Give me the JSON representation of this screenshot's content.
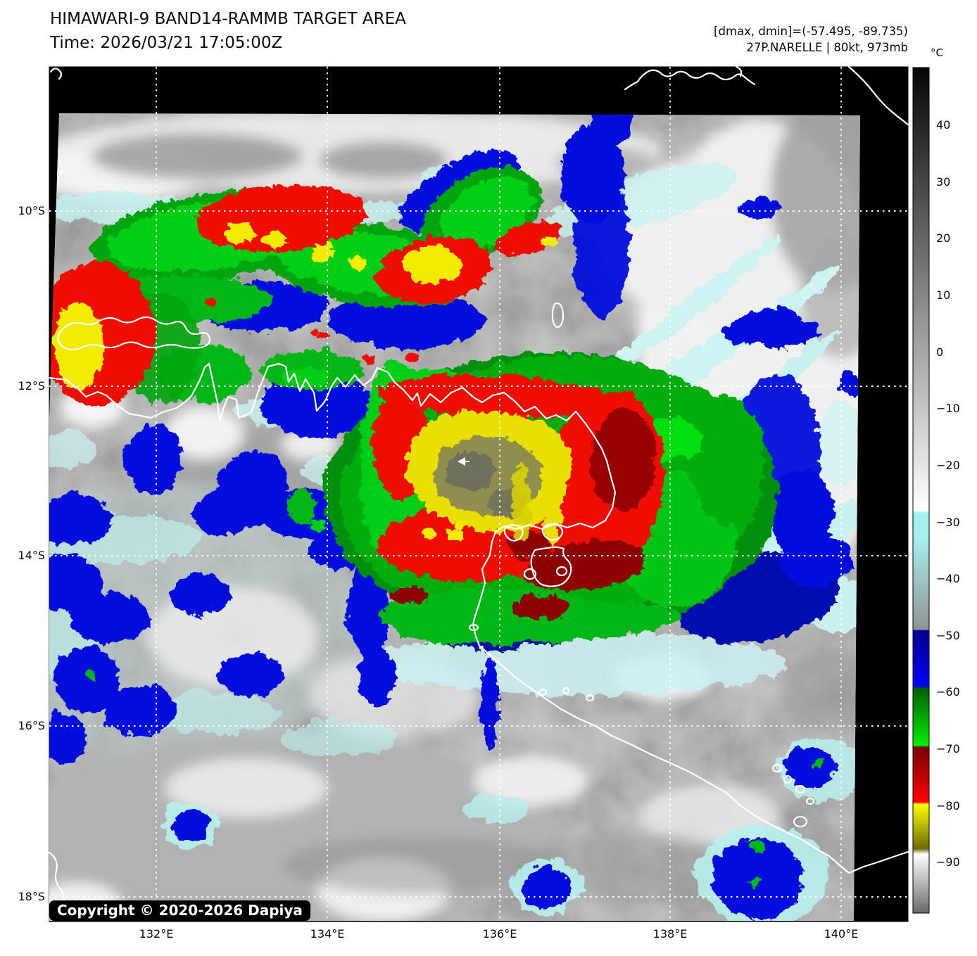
{
  "header": {
    "title": "HIMAWARI-9 BAND14-RAMMB TARGET AREA",
    "time_label": "Time: 2026/03/21 17:05:00Z",
    "dmax_dmin": "[dmax, dmin]=(-57.495, -89.735)",
    "storm_info": "27P.NARELLE | 80kt, 973mb"
  },
  "colorbar": {
    "unit": "°C",
    "ticks": [
      {
        "label": "40",
        "value": 40
      },
      {
        "label": "30",
        "value": 30
      },
      {
        "label": "20",
        "value": 20
      },
      {
        "label": "10",
        "value": 10
      },
      {
        "label": "0",
        "value": 0
      },
      {
        "label": "−10",
        "value": -10
      },
      {
        "label": "−20",
        "value": -20
      },
      {
        "label": "−30",
        "value": -30
      },
      {
        "label": "−40",
        "value": -40
      },
      {
        "label": "−50",
        "value": -50
      },
      {
        "label": "−60",
        "value": -60
      },
      {
        "label": "−70",
        "value": -70
      },
      {
        "label": "−80",
        "value": -80
      },
      {
        "label": "−90",
        "value": -90
      }
    ],
    "gradient": [
      {
        "o": 0.0,
        "c": "#050505"
      },
      {
        "o": 0.5237,
        "c": "#ffffff"
      },
      {
        "o": 0.527,
        "c": "#9ef2f0"
      },
      {
        "o": 0.5572,
        "c": "#a5efec"
      },
      {
        "o": 0.6444,
        "c": "#93a4a4"
      },
      {
        "o": 0.6646,
        "c": "#8e9292"
      },
      {
        "o": 0.6659,
        "c": "#00008e"
      },
      {
        "o": 0.7317,
        "c": "#0000fa"
      },
      {
        "o": 0.7344,
        "c": "#005f00"
      },
      {
        "o": 0.8015,
        "c": "#00ef00"
      },
      {
        "o": 0.8042,
        "c": "#780000"
      },
      {
        "o": 0.8686,
        "c": "#ff0000"
      },
      {
        "o": 0.8713,
        "c": "#ffff00"
      },
      {
        "o": 0.9236,
        "c": "#6c6c00"
      },
      {
        "o": 0.9303,
        "c": "#ffffff"
      },
      {
        "o": 1.0,
        "c": "#696969"
      }
    ]
  },
  "map": {
    "lat_ticks": [
      "10°S",
      "12°S",
      "14°S",
      "16°S",
      "18°S"
    ],
    "lon_ticks": [
      "132°E",
      "134°E",
      "136°E",
      "138°E",
      "140°E"
    ],
    "copyright": "Copyright © 2020-2026 Dapiya",
    "palette_colors": {
      "coldest_gray": "#696969",
      "white_band": "#ffffff",
      "yellow": "#ffff00",
      "red": "#ff0000",
      "dark_red": "#780000",
      "green": "#00ef00",
      "blue": "#0000fa",
      "navy": "#00008e",
      "cyan": "#9ef2f0"
    }
  }
}
